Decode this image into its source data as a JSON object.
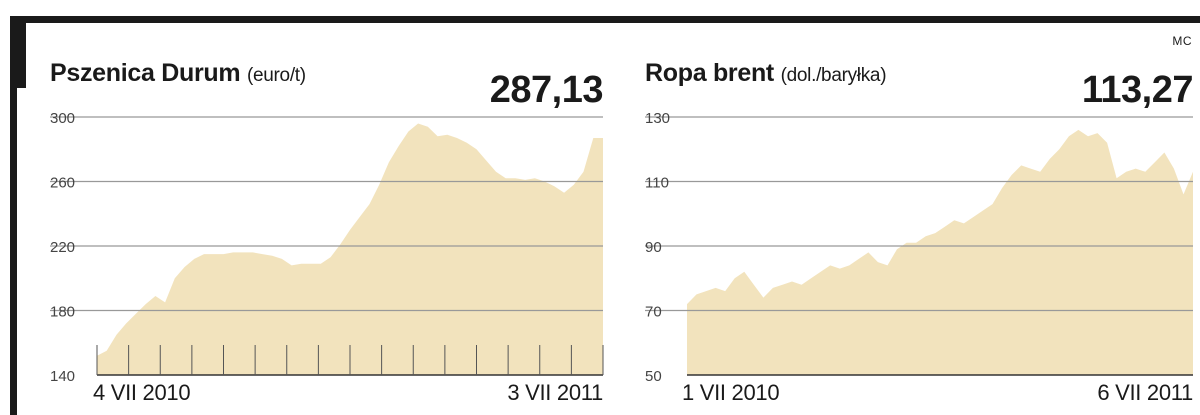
{
  "source": "MC",
  "colors": {
    "area": "#f2e3bd",
    "grid": "#999999",
    "text": "#1a1a1a"
  },
  "chart_data": [
    {
      "type": "area",
      "title": "Pszenica Durum",
      "unit": "(euro/t)",
      "current_value": "287,13",
      "ylim": [
        140,
        300
      ],
      "y_ticks": [
        140,
        180,
        220,
        260,
        300
      ],
      "x_start_label": "4 VII 2010",
      "x_end_label": "3 VII 2011",
      "grid": true,
      "x": [
        "2010-07-04",
        "2010-07-11",
        "2010-07-18",
        "2010-07-25",
        "2010-08-01",
        "2010-08-08",
        "2010-08-15",
        "2010-08-22",
        "2010-08-29",
        "2010-09-05",
        "2010-09-12",
        "2010-09-19",
        "2010-09-26",
        "2010-10-03",
        "2010-10-10",
        "2010-10-17",
        "2010-10-24",
        "2010-10-31",
        "2010-11-07",
        "2010-11-14",
        "2010-11-21",
        "2010-11-28",
        "2010-12-05",
        "2010-12-12",
        "2010-12-19",
        "2010-12-26",
        "2011-01-02",
        "2011-01-09",
        "2011-01-16",
        "2011-01-23",
        "2011-01-30",
        "2011-02-06",
        "2011-02-13",
        "2011-02-20",
        "2011-02-27",
        "2011-03-06",
        "2011-03-13",
        "2011-03-20",
        "2011-03-27",
        "2011-04-03",
        "2011-04-10",
        "2011-04-17",
        "2011-04-24",
        "2011-05-01",
        "2011-05-08",
        "2011-05-15",
        "2011-05-22",
        "2011-05-29",
        "2011-06-05",
        "2011-06-12",
        "2011-06-19",
        "2011-06-26",
        "2011-07-03"
      ],
      "values": [
        152,
        155,
        165,
        172,
        178,
        184,
        189,
        185,
        200,
        207,
        212,
        215,
        215,
        215,
        216,
        216,
        216,
        215,
        214,
        212,
        208,
        209,
        209,
        209,
        213,
        221,
        230,
        238,
        246,
        258,
        272,
        282,
        291,
        296,
        294,
        288,
        289,
        287,
        284,
        280,
        273,
        266,
        262,
        262,
        261,
        262,
        260,
        257,
        253,
        258,
        266,
        287,
        287
      ]
    },
    {
      "type": "area",
      "title": "Ropa brent",
      "unit": "(dol./baryłka)",
      "current_value": "113,27",
      "ylim": [
        50,
        130
      ],
      "y_ticks": [
        50,
        70,
        90,
        110,
        130
      ],
      "x_start_label": "1 VII 2010",
      "x_end_label": "6 VII 2011",
      "grid": true,
      "x": [
        "2010-07-01",
        "2010-07-08",
        "2010-07-15",
        "2010-07-22",
        "2010-07-29",
        "2010-08-05",
        "2010-08-12",
        "2010-08-19",
        "2010-08-26",
        "2010-09-02",
        "2010-09-09",
        "2010-09-16",
        "2010-09-23",
        "2010-09-30",
        "2010-10-07",
        "2010-10-14",
        "2010-10-21",
        "2010-10-28",
        "2010-11-04",
        "2010-11-11",
        "2010-11-18",
        "2010-11-25",
        "2010-12-02",
        "2010-12-09",
        "2010-12-16",
        "2010-12-23",
        "2010-12-30",
        "2011-01-06",
        "2011-01-13",
        "2011-01-20",
        "2011-01-27",
        "2011-02-03",
        "2011-02-10",
        "2011-02-17",
        "2011-02-24",
        "2011-03-03",
        "2011-03-10",
        "2011-03-17",
        "2011-03-24",
        "2011-03-31",
        "2011-04-07",
        "2011-04-14",
        "2011-04-21",
        "2011-04-28",
        "2011-05-05",
        "2011-05-12",
        "2011-05-19",
        "2011-05-26",
        "2011-06-02",
        "2011-06-09",
        "2011-06-16",
        "2011-06-23",
        "2011-06-30",
        "2011-07-06"
      ],
      "values": [
        72,
        75,
        76,
        77,
        76,
        80,
        82,
        78,
        74,
        77,
        78,
        79,
        78,
        80,
        82,
        84,
        83,
        84,
        86,
        88,
        85,
        84,
        89,
        91,
        91,
        93,
        94,
        96,
        98,
        97,
        99,
        101,
        103,
        108,
        112,
        115,
        114,
        113,
        117,
        120,
        124,
        126,
        124,
        125,
        122,
        111,
        113,
        114,
        113,
        116,
        119,
        114,
        106,
        113
      ]
    }
  ]
}
